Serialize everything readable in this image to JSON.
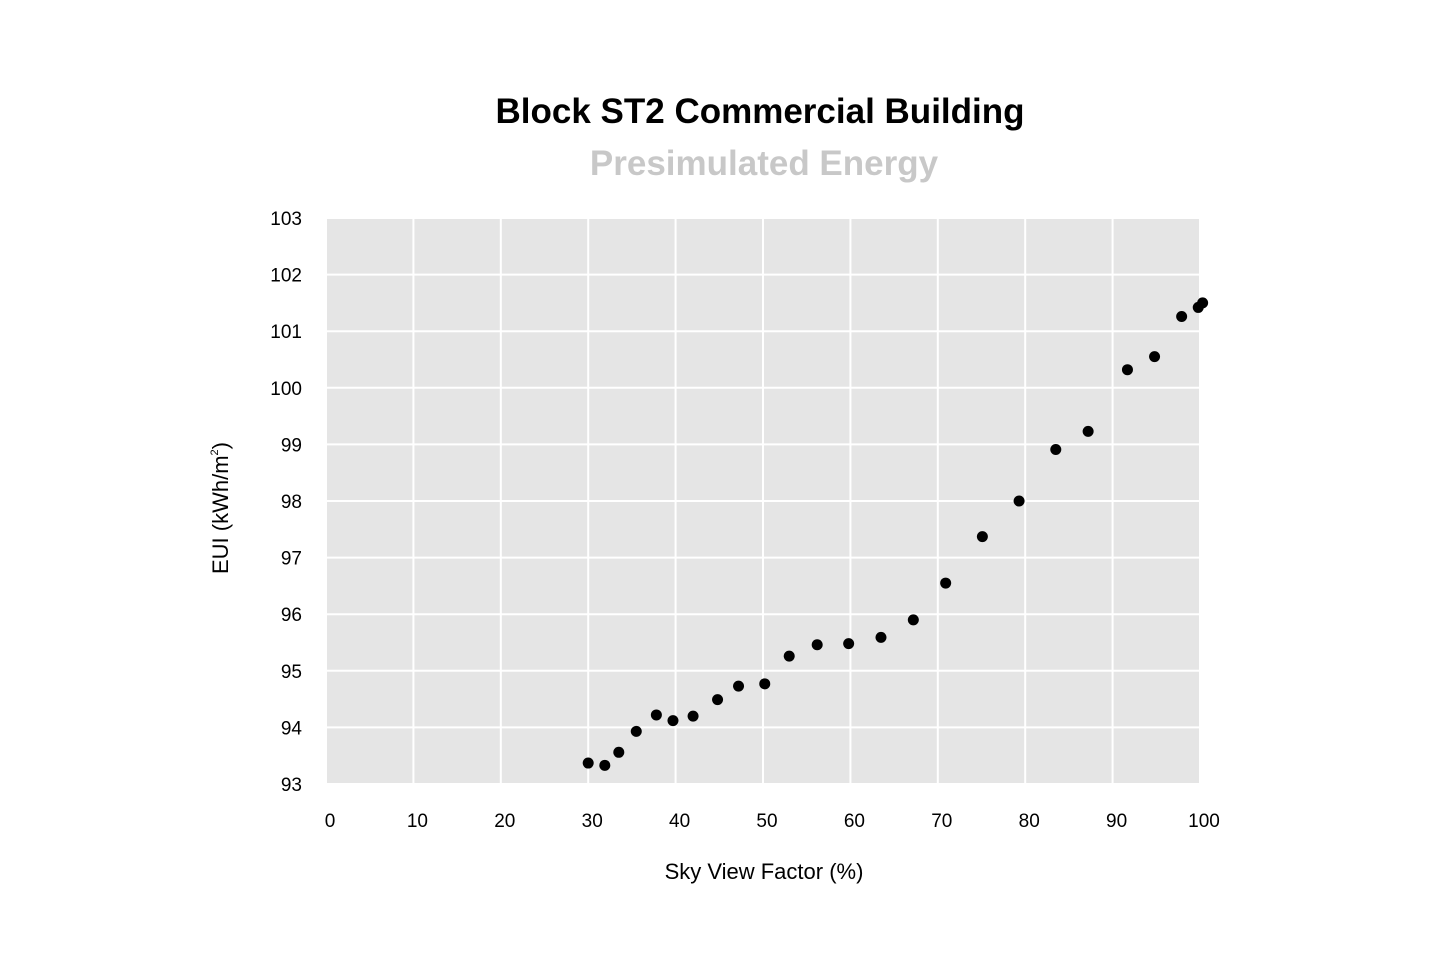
{
  "chart_data": {
    "type": "scatter",
    "title": "Block ST2 Commercial Building",
    "subtitle": "Presimulated Energy",
    "xlabel": "Sky View Factor (%)",
    "ylabel": {
      "main": "EUI (kWh/m",
      "superscript": "2",
      "close": ")"
    },
    "xlim": [
      0,
      100
    ],
    "ylim": [
      93,
      103
    ],
    "x_ticks": [
      "0",
      "10",
      "20",
      "30",
      "40",
      "50",
      "60",
      "70",
      "80",
      "90",
      "100"
    ],
    "y_ticks": [
      "103",
      "102",
      "101",
      "100",
      "99",
      "98",
      "97",
      "96",
      "95",
      "94",
      "93"
    ],
    "grid": true,
    "legend": "none",
    "colors": {
      "plot_background": "#e5e5e5",
      "grid": "#ffffff",
      "point": "#000000",
      "subtitle": "#c8c8c8"
    },
    "series": [
      {
        "x": [
          30.0,
          31.9,
          33.5,
          35.5,
          37.8,
          39.7,
          42.0,
          44.8,
          47.2,
          50.2,
          53.0,
          56.2,
          59.8,
          63.5,
          67.2,
          70.9,
          75.1,
          79.3,
          83.5,
          87.2,
          91.7,
          94.8,
          97.9,
          99.8,
          100.3
        ],
        "y": [
          93.37,
          93.33,
          93.56,
          93.93,
          94.22,
          94.12,
          94.2,
          94.49,
          94.73,
          94.77,
          95.26,
          95.46,
          95.48,
          95.59,
          95.9,
          96.55,
          97.37,
          98.0,
          98.91,
          99.23,
          100.32,
          100.55,
          101.26,
          101.42,
          101.5
        ]
      }
    ]
  }
}
